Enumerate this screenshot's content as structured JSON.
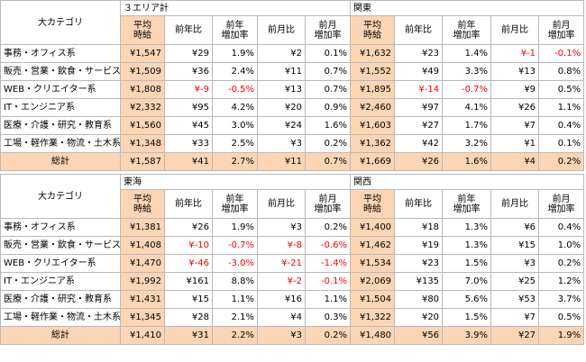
{
  "tables": [
    {
      "corner_label": "大カテゴリ",
      "region_a": "３エリア計",
      "region_b": "関東",
      "subheaders": [
        "平均\n時給",
        "前年比",
        "前年\n増加率",
        "前月比",
        "前月\n増加率",
        "平均\n時給",
        "前年比",
        "前年\n増加率",
        "前月比",
        "前月\n増加率"
      ],
      "rows": [
        {
          "cat": "事務・オフィス系",
          "v": [
            "¥1,547",
            "¥29",
            "1.9%",
            "¥2",
            "0.1%",
            "¥1,632",
            "¥23",
            "1.4%",
            "¥-1",
            "-0.1%"
          ]
        },
        {
          "cat": "販売・営業・飲食・サービス系",
          "v": [
            "¥1,509",
            "¥36",
            "2.4%",
            "¥11",
            "0.7%",
            "¥1,552",
            "¥49",
            "3.3%",
            "¥13",
            "0.8%"
          ]
        },
        {
          "cat": "WEB・クリエイター系",
          "v": [
            "¥1,808",
            "¥-9",
            "-0.5%",
            "¥13",
            "0.7%",
            "¥1,895",
            "¥-14",
            "-0.7%",
            "¥9",
            "0.5%"
          ]
        },
        {
          "cat": "IT・エンジニア系",
          "v": [
            "¥2,332",
            "¥95",
            "4.2%",
            "¥20",
            "0.9%",
            "¥2,460",
            "¥97",
            "4.1%",
            "¥26",
            "1.1%"
          ]
        },
        {
          "cat": "医療・介護・研究・教育系",
          "v": [
            "¥1,560",
            "¥45",
            "3.0%",
            "¥24",
            "1.6%",
            "¥1,603",
            "¥27",
            "1.7%",
            "¥7",
            "0.4%"
          ]
        },
        {
          "cat": "工場・軽作業・物流・土木系",
          "v": [
            "¥1,348",
            "¥33",
            "2.5%",
            "¥3",
            "0.2%",
            "¥1,362",
            "¥42",
            "3.2%",
            "¥1",
            "0.1%"
          ]
        }
      ],
      "total": {
        "cat": "総計",
        "v": [
          "¥1,587",
          "¥41",
          "2.7%",
          "¥11",
          "0.7%",
          "¥1,669",
          "¥26",
          "1.6%",
          "¥4",
          "0.2%"
        ]
      }
    },
    {
      "corner_label": "大カテゴリ",
      "region_a": "東海",
      "region_b": "関西",
      "subheaders": [
        "平均\n時給",
        "前年比",
        "前年\n増加率",
        "前月比",
        "前月\n増加率",
        "平均\n時給",
        "前年比",
        "前年\n増加率",
        "前月比",
        "前月\n増加率"
      ],
      "rows": [
        {
          "cat": "事務・オフィス系",
          "v": [
            "¥1,381",
            "¥26",
            "1.9%",
            "¥3",
            "0.2%",
            "¥1,400",
            "¥18",
            "1.3%",
            "¥6",
            "0.4%"
          ]
        },
        {
          "cat": "販売・営業・飲食・サービス系",
          "v": [
            "¥1,408",
            "¥-10",
            "-0.7%",
            "¥-8",
            "-0.6%",
            "¥1,462",
            "¥19",
            "1.3%",
            "¥15",
            "1.0%"
          ]
        },
        {
          "cat": "WEB・クリエイター系",
          "v": [
            "¥1,470",
            "¥-46",
            "-3.0%",
            "¥-21",
            "-1.4%",
            "¥1,534",
            "¥23",
            "1.5%",
            "¥3",
            "0.2%"
          ]
        },
        {
          "cat": "IT・エンジニア系",
          "v": [
            "¥1,992",
            "¥161",
            "8.8%",
            "¥-2",
            "-0.1%",
            "¥2,069",
            "¥135",
            "7.0%",
            "¥25",
            "1.2%"
          ]
        },
        {
          "cat": "医療・介護・研究・教育系",
          "v": [
            "¥1,431",
            "¥15",
            "1.1%",
            "¥16",
            "1.1%",
            "¥1,504",
            "¥80",
            "5.6%",
            "¥53",
            "3.7%"
          ]
        },
        {
          "cat": "工場・軽作業・物流・土木系",
          "v": [
            "¥1,345",
            "¥28",
            "2.1%",
            "¥4",
            "0.3%",
            "¥1,322",
            "¥20",
            "1.5%",
            "¥7",
            "0.5%"
          ]
        }
      ],
      "total": {
        "cat": "総計",
        "v": [
          "¥1,410",
          "¥31",
          "2.2%",
          "¥3",
          "0.2%",
          "¥1,480",
          "¥56",
          "3.9%",
          "¥27",
          "1.9%"
        ]
      }
    }
  ],
  "colors": {
    "highlight": "#fcd5b5",
    "negative": "#ff0000",
    "border": "#b9b9b9"
  }
}
